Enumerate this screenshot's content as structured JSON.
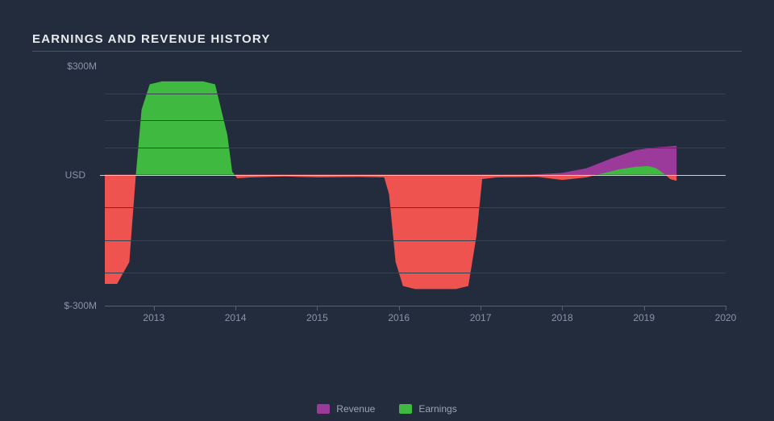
{
  "title": "EARNINGS AND REVENUE HISTORY",
  "chart": {
    "type": "area",
    "currency_axis_label": "USD",
    "background_color": "#222c3c",
    "grid_color": "#36414f",
    "zero_line_color": "#c8d0dc",
    "axis_color": "#56616f",
    "text_color": "#8a94a6",
    "title_color": "#e8ecf0",
    "ylim": [
      -300,
      300
    ],
    "y_ticks": [
      {
        "value": 300,
        "label": "$300M"
      },
      {
        "value": -300,
        "label": "$-300M"
      }
    ],
    "grid_values": [
      225,
      150,
      75,
      -75,
      -150,
      -225
    ],
    "x_years": [
      2013,
      2014,
      2015,
      2016,
      2017,
      2018,
      2019,
      2020
    ],
    "x_range": [
      2012.4,
      2020
    ],
    "zero_position_pct": 40.8,
    "xaxis_position_pct": 90,
    "series": {
      "revenue": {
        "label": "Revenue",
        "color": "#9b3a9b",
        "points": [
          {
            "x": 2012.4,
            "y": 0
          },
          {
            "x": 2017.6,
            "y": 0
          },
          {
            "x": 2018.0,
            "y": 5
          },
          {
            "x": 2018.3,
            "y": 18
          },
          {
            "x": 2018.6,
            "y": 45
          },
          {
            "x": 2018.9,
            "y": 68
          },
          {
            "x": 2019.1,
            "y": 75
          },
          {
            "x": 2019.3,
            "y": 78
          },
          {
            "x": 2019.4,
            "y": 80
          }
        ]
      },
      "earnings": {
        "label": "Earnings",
        "color_pos": "#3fb93f",
        "color_neg": "#ef5350",
        "points": [
          {
            "x": 2012.4,
            "y": -250
          },
          {
            "x": 2012.55,
            "y": -250
          },
          {
            "x": 2012.7,
            "y": -200
          },
          {
            "x": 2012.78,
            "y": 0
          },
          {
            "x": 2012.85,
            "y": 180
          },
          {
            "x": 2012.95,
            "y": 250
          },
          {
            "x": 2013.1,
            "y": 258
          },
          {
            "x": 2013.6,
            "y": 258
          },
          {
            "x": 2013.75,
            "y": 250
          },
          {
            "x": 2013.9,
            "y": 110
          },
          {
            "x": 2013.96,
            "y": 8
          },
          {
            "x": 2014.02,
            "y": -8
          },
          {
            "x": 2014.2,
            "y": -6
          },
          {
            "x": 2014.6,
            "y": -4
          },
          {
            "x": 2015.0,
            "y": -6
          },
          {
            "x": 2015.5,
            "y": -5
          },
          {
            "x": 2015.82,
            "y": -6
          },
          {
            "x": 2015.88,
            "y": -45
          },
          {
            "x": 2015.96,
            "y": -200
          },
          {
            "x": 2016.05,
            "y": -255
          },
          {
            "x": 2016.2,
            "y": -262
          },
          {
            "x": 2016.7,
            "y": -262
          },
          {
            "x": 2016.85,
            "y": -255
          },
          {
            "x": 2016.95,
            "y": -140
          },
          {
            "x": 2017.02,
            "y": -10
          },
          {
            "x": 2017.2,
            "y": -6
          },
          {
            "x": 2017.7,
            "y": -5
          },
          {
            "x": 2018.0,
            "y": -12
          },
          {
            "x": 2018.3,
            "y": -6
          },
          {
            "x": 2018.5,
            "y": 4
          },
          {
            "x": 2018.7,
            "y": 15
          },
          {
            "x": 2018.9,
            "y": 22
          },
          {
            "x": 2019.05,
            "y": 24
          },
          {
            "x": 2019.15,
            "y": 18
          },
          {
            "x": 2019.25,
            "y": 2
          },
          {
            "x": 2019.32,
            "y": -10
          },
          {
            "x": 2019.4,
            "y": -14
          }
        ]
      }
    }
  },
  "legend": [
    {
      "key": "revenue",
      "label": "Revenue",
      "color": "#9b3a9b"
    },
    {
      "key": "earnings",
      "label": "Earnings",
      "color": "#3fb93f"
    }
  ]
}
